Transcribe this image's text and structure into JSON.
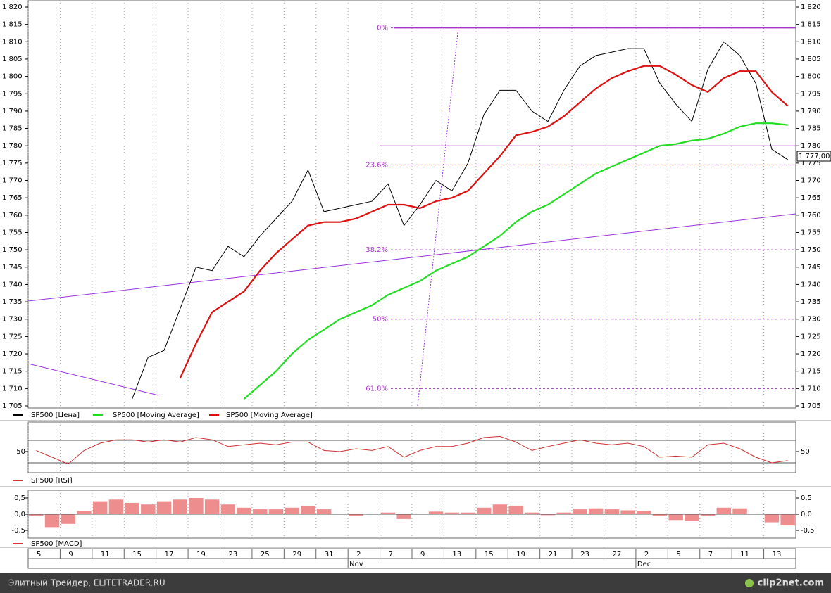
{
  "chart_data": [
    {
      "type": "line",
      "ylim": [
        1705,
        1820
      ],
      "yticks": [
        {
          "value": 1705,
          "label": "1 705"
        },
        {
          "value": 1710,
          "label": "1 710"
        },
        {
          "value": 1715,
          "label": "1 715"
        },
        {
          "value": 1720,
          "label": "1 720"
        },
        {
          "value": 1725,
          "label": "1 725"
        },
        {
          "value": 1730,
          "label": "1 730"
        },
        {
          "value": 1735,
          "label": "1 735"
        },
        {
          "value": 1740,
          "label": "1 740"
        },
        {
          "value": 1745,
          "label": "1 745"
        },
        {
          "value": 1750,
          "label": "1 750"
        },
        {
          "value": 1755,
          "label": "1 755"
        },
        {
          "value": 1760,
          "label": "1 760"
        },
        {
          "value": 1765,
          "label": "1 765"
        },
        {
          "value": 1770,
          "label": "1 770"
        },
        {
          "value": 1775,
          "label": "1 775"
        },
        {
          "value": 1780,
          "label": "1 780"
        },
        {
          "value": 1785,
          "label": "1 785"
        },
        {
          "value": 1790,
          "label": "1 790"
        },
        {
          "value": 1795,
          "label": "1 795"
        },
        {
          "value": 1800,
          "label": "1 800"
        },
        {
          "value": 1805,
          "label": "1 805"
        },
        {
          "value": 1810,
          "label": "1 810"
        },
        {
          "value": 1815,
          "label": "1 815"
        },
        {
          "value": 1820,
          "label": "1 820"
        }
      ],
      "series": [
        {
          "name": "SP500 [Цена]",
          "color": "#000000",
          "values": [
            null,
            null,
            null,
            null,
            null,
            null,
            1707,
            1719,
            1721,
            1733,
            1745,
            1744,
            1751,
            1748,
            1754,
            1759,
            1764,
            1773,
            1761,
            1762,
            1763,
            1764,
            1769,
            1757,
            1763,
            1770,
            1767,
            1775,
            1789,
            1796,
            1796,
            1790,
            1787,
            1796,
            1803,
            1806,
            1807,
            1808,
            1808,
            1798,
            1792,
            1787,
            1802,
            1810,
            1806,
            1798,
            1779,
            1776
          ]
        },
        {
          "name": "SP500 [Moving Average]",
          "color": "#22dd22",
          "values": [
            null,
            null,
            null,
            null,
            null,
            null,
            null,
            null,
            null,
            null,
            null,
            null,
            null,
            1707,
            1711,
            1715,
            1720,
            1724,
            1727,
            1730,
            1732,
            1734,
            1737,
            1739,
            1741,
            1744,
            1746,
            1748,
            1751,
            1754,
            1758,
            1761,
            1763,
            1766,
            1769,
            1772,
            1774,
            1776,
            1778,
            1780,
            1780.5,
            1781.5,
            1782,
            1783.5,
            1785.5,
            1786.5,
            1786.5,
            1786
          ]
        },
        {
          "name": "SP500 [Moving Average]",
          "color": "#dd1111",
          "values": [
            null,
            null,
            null,
            null,
            null,
            null,
            null,
            null,
            null,
            1713,
            1723,
            1732,
            1735,
            1738,
            1744,
            1749,
            1753,
            1757,
            1758,
            1758,
            1759,
            1761,
            1763,
            1763,
            1762,
            1764,
            1765,
            1767,
            1772,
            1777,
            1783,
            1784,
            1785.5,
            1788.5,
            1792.5,
            1796.5,
            1799.5,
            1801.5,
            1803,
            1803,
            1800.5,
            1797.5,
            1795.5,
            1799.5,
            1801.5,
            1801.5,
            1795.5,
            1791.5
          ]
        }
      ],
      "levels": [
        1780,
        1814
      ],
      "fib_levels": [
        {
          "value": 1814,
          "label": "0%"
        },
        {
          "value": 1774.5,
          "label": "23.6%"
        },
        {
          "value": 1750,
          "label": "38.2%"
        },
        {
          "value": 1730,
          "label": "50%"
        },
        {
          "value": 1710,
          "label": "61.8%"
        }
      ],
      "last_price": {
        "value": 1777,
        "label": "1 777,00"
      }
    },
    {
      "type": "line",
      "ylim": [
        10,
        100
      ],
      "yticks": [
        50
      ],
      "levels": [
        30,
        70
      ],
      "series": [
        {
          "name": "SP500 [RSI]",
          "color": "#cc3333",
          "values": [
            52,
            40,
            28,
            52,
            65,
            71,
            71,
            67,
            71,
            67,
            75,
            71,
            59,
            62,
            65,
            62,
            67,
            67,
            52,
            50,
            55,
            52,
            59,
            40,
            52,
            59,
            59,
            65,
            75,
            77,
            67,
            52,
            59,
            65,
            71,
            65,
            62,
            65,
            59,
            40,
            42,
            40,
            62,
            65,
            55,
            40,
            30,
            34
          ]
        }
      ]
    },
    {
      "type": "bar",
      "ylim": [
        -0.75,
        0.7
      ],
      "yticks": [
        {
          "value": 0.5,
          "label": "0,5"
        },
        {
          "value": 0,
          "label": "0,0"
        },
        {
          "value": -0.5,
          "label": "-0,5"
        }
      ],
      "series": [
        {
          "name": "SP500 [MACD]",
          "color": "#e03030",
          "values": [
            -0.05,
            -0.4,
            -0.3,
            0.1,
            0.4,
            0.45,
            0.35,
            0.3,
            0.4,
            0.45,
            0.5,
            0.45,
            0.3,
            0.2,
            0.15,
            0.15,
            0.2,
            0.25,
            0.15,
            0,
            -0.05,
            0,
            0.05,
            -0.15,
            0,
            0.08,
            0.05,
            0.05,
            0.2,
            0.3,
            0.25,
            0.05,
            -0.03,
            0.05,
            0.15,
            0.18,
            0.15,
            0.12,
            0.1,
            -0.05,
            -0.18,
            -0.2,
            -0.05,
            0.2,
            0.18,
            0,
            -0.25,
            -0.35
          ]
        }
      ],
      "categories": [
        "5",
        null,
        "9",
        null,
        "11",
        null,
        "15",
        null,
        "17",
        null,
        "19",
        null,
        "23",
        null,
        "25",
        null,
        "29",
        null,
        "31",
        null,
        "2",
        null,
        "7",
        null,
        "9",
        null,
        "13",
        null,
        "15",
        null,
        "19",
        null,
        "21",
        null,
        "23",
        null,
        "27",
        null,
        "2",
        null,
        "5",
        null,
        "7",
        null,
        "11",
        null,
        "13",
        null
      ],
      "months": [
        null,
        null,
        null,
        null,
        null,
        null,
        null,
        null,
        null,
        null,
        null,
        null,
        null,
        null,
        null,
        null,
        null,
        null,
        null,
        null,
        "Nov",
        null,
        null,
        null,
        null,
        null,
        null,
        null,
        null,
        null,
        null,
        null,
        null,
        null,
        null,
        null,
        null,
        null,
        "Dec",
        null,
        null,
        null,
        null,
        null,
        null,
        null,
        null,
        null
      ]
    }
  ],
  "footer": {
    "left": "Элитный Трейдер, ELITETRADER.RU",
    "right": "clip2net.com"
  }
}
